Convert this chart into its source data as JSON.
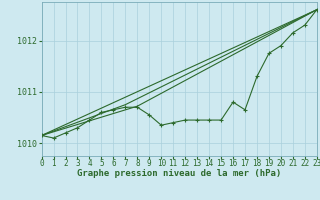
{
  "bg_color": "#cee9f0",
  "grid_color": "#aad0dc",
  "line_color": "#2d6a2d",
  "xlim": [
    0,
    23
  ],
  "ylim": [
    1009.75,
    1012.75
  ],
  "yticks": [
    1010,
    1011,
    1012
  ],
  "xticks": [
    0,
    1,
    2,
    3,
    4,
    5,
    6,
    7,
    8,
    9,
    10,
    11,
    12,
    13,
    14,
    15,
    16,
    17,
    18,
    19,
    20,
    21,
    22,
    23
  ],
  "xlabel": "Graphe pression niveau de la mer (hPa)",
  "main_line": [
    1010.15,
    1010.1,
    1010.2,
    1010.3,
    1010.45,
    1010.6,
    1010.65,
    1010.7,
    1010.7,
    1010.55,
    1010.35,
    1010.4,
    1010.45,
    1010.45,
    1010.45,
    1010.45,
    1010.8,
    1010.65,
    1011.3,
    1011.75,
    1011.9,
    1012.15,
    1012.3,
    1012.6
  ],
  "line2_x": [
    0,
    23
  ],
  "line2_y": [
    1010.15,
    1012.6
  ],
  "line3_x": [
    0,
    7,
    23
  ],
  "line3_y": [
    1010.15,
    1010.75,
    1012.6
  ],
  "line4_x": [
    0,
    8,
    23
  ],
  "line4_y": [
    1010.15,
    1010.72,
    1012.6
  ]
}
